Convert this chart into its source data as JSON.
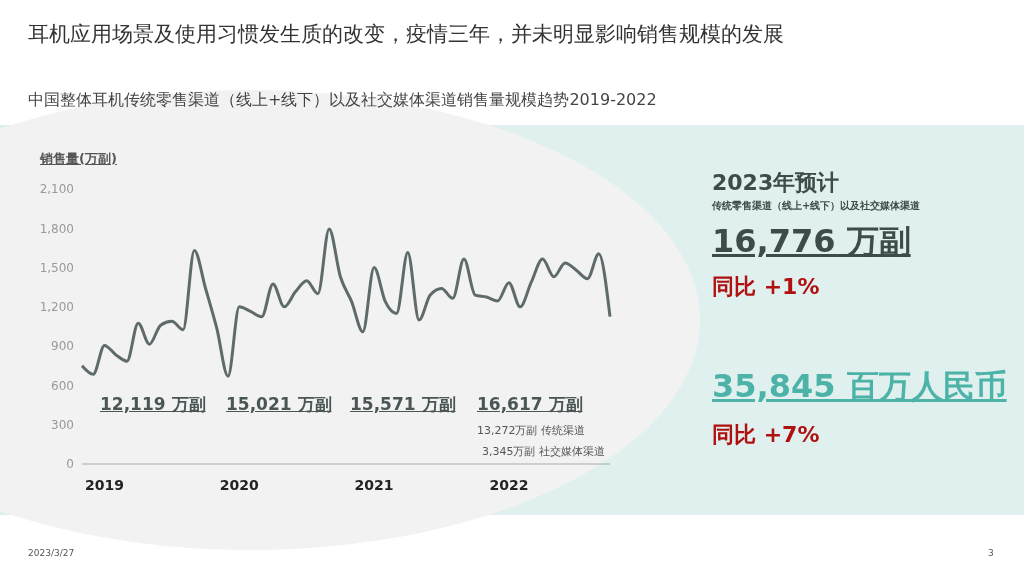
{
  "chart_data": {
    "type": "line",
    "title": "耳机应用场景及使用习惯发生质的改变，疫情三年，并未明显影响销售规模的发展",
    "subtitle": "中国整体耳机传统零售渠道（线上+线下）以及社交媒体渠道销售量规模趋势2019-2022",
    "ylabel": "销售量(万副)",
    "categories": [
      null,
      null,
      "2019",
      null,
      null,
      null,
      null,
      null,
      null,
      null,
      null,
      null,
      null,
      null,
      "2020",
      null,
      null,
      null,
      null,
      null,
      null,
      null,
      null,
      null,
      null,
      null,
      "2021",
      null,
      null,
      null,
      null,
      null,
      null,
      null,
      null,
      null,
      null,
      null,
      "2022",
      null,
      null,
      null,
      null,
      null,
      null,
      null,
      null,
      null
    ],
    "series": [
      {
        "color": "#5f6a6a",
        "values": [
          750,
          685,
          905,
          835,
          785,
          1075,
          915,
          1060,
          1090,
          1025,
          1630,
          1340,
          1035,
          670,
          1200,
          1165,
          1125,
          1375,
          1200,
          1315,
          1400,
          1300,
          1795,
          1430,
          1240,
          1010,
          1500,
          1240,
          1150,
          1615,
          1100,
          1290,
          1340,
          1265,
          1565,
          1290,
          1275,
          1245,
          1385,
          1200,
          1390,
          1565,
          1430,
          1535,
          1480,
          1415,
          1605,
          1125
        ]
      }
    ],
    "ylim": [
      0,
      2100
    ],
    "yticks": [
      0,
      300,
      600,
      900,
      {
        "value": 1200,
        "label": "1,200"
      },
      {
        "value": 1500,
        "label": "1,500"
      },
      {
        "value": 1800,
        "label": "1,800"
      },
      {
        "value": 2100,
        "label": "2,100"
      }
    ],
    "grid": false,
    "legend": false,
    "marker": "none",
    "line_style": "solid",
    "annotations": [
      "12,119 万副",
      "15,021 万副",
      "15,571 万副",
      "16,617 万副",
      "13,272万副 传统渠道",
      "3,345万副 社交媒体渠道",
      "2023年预计",
      "传统零售渠道（线上+线下）以及社交媒体渠道",
      "16,776 万副",
      "同比 +1%",
      "35,845 百万人民币",
      "同比 +7%",
      "2023/3/27",
      "3"
    ]
  }
}
